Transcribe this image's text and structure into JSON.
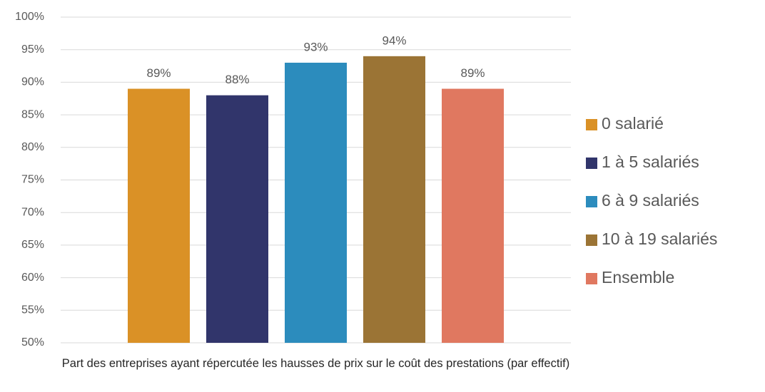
{
  "chart_data": {
    "type": "bar",
    "categories": [
      "Part des entreprises ayant répercutée les hausses de prix sur le coût des prestations (par effectif)"
    ],
    "series": [
      {
        "name": "0 salarié",
        "color": "#da9126",
        "values": [
          89
        ],
        "value_labels": [
          "89%"
        ]
      },
      {
        "name": "1 à 5 salariés",
        "color": "#31356b",
        "values": [
          88
        ],
        "value_labels": [
          "88%"
        ]
      },
      {
        "name": "6 à 9 salariés",
        "color": "#2c8cbd",
        "values": [
          93
        ],
        "value_labels": [
          "93%"
        ]
      },
      {
        "name": "10 à 19 salariés",
        "color": "#9b7435",
        "values": [
          94
        ],
        "value_labels": [
          "94%"
        ]
      },
      {
        "name": "Ensemble",
        "color": "#e07860",
        "values": [
          89
        ],
        "value_labels": [
          "89%"
        ]
      }
    ],
    "ylim": [
      50,
      100
    ],
    "yticks": [
      {
        "value": 50,
        "label": "50%"
      },
      {
        "value": 55,
        "label": "55%"
      },
      {
        "value": 60,
        "label": "60%"
      },
      {
        "value": 65,
        "label": "65%"
      },
      {
        "value": 70,
        "label": "70%"
      },
      {
        "value": 75,
        "label": "75%"
      },
      {
        "value": 80,
        "label": "80%"
      },
      {
        "value": 85,
        "label": "85%"
      },
      {
        "value": 90,
        "label": "90%"
      },
      {
        "value": 95,
        "label": "95%"
      },
      {
        "value": 100,
        "label": "100%"
      }
    ],
    "grid": true,
    "legend": "right"
  }
}
